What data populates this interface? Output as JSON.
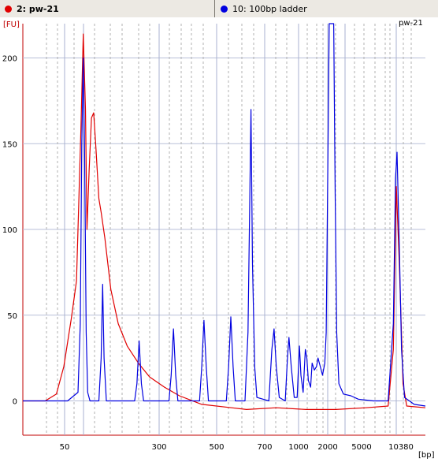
{
  "tabs": [
    {
      "label": "2: pw-21",
      "color": "#e00000"
    },
    {
      "label": "10: 100bp ladder",
      "color": "#0000e0"
    }
  ],
  "chart_data": {
    "type": "line",
    "title": "pw-21",
    "ylabel": "[FU]",
    "xlabel": "[bp]",
    "ylim": [
      -20,
      220
    ],
    "y_ticks": [
      0,
      50,
      100,
      150,
      200
    ],
    "x_tick_labels": [
      "50",
      "300",
      "500",
      "700",
      "1000",
      "2000",
      "5000",
      "10380"
    ],
    "grid": true,
    "series": [
      {
        "name": "pw-21",
        "color": "#e00000",
        "points": [
          [
            0,
            0
          ],
          [
            30,
            0
          ],
          [
            45,
            4
          ],
          [
            55,
            20
          ],
          [
            65,
            48
          ],
          [
            72,
            70
          ],
          [
            78,
            160
          ],
          [
            81,
            214
          ],
          [
            84,
            170
          ],
          [
            86,
            100
          ],
          [
            89,
            135
          ],
          [
            92,
            165
          ],
          [
            95,
            168
          ],
          [
            98,
            148
          ],
          [
            102,
            118
          ],
          [
            105,
            110
          ],
          [
            110,
            95
          ],
          [
            118,
            65
          ],
          [
            128,
            45
          ],
          [
            140,
            32
          ],
          [
            155,
            22
          ],
          [
            170,
            14
          ],
          [
            190,
            8
          ],
          [
            210,
            3
          ],
          [
            240,
            -2
          ],
          [
            280,
            -4
          ],
          [
            300,
            -5
          ],
          [
            340,
            -4
          ],
          [
            380,
            -5
          ],
          [
            420,
            -5
          ],
          [
            460,
            -4
          ],
          [
            490,
            -3
          ],
          [
            497,
            30
          ],
          [
            501,
            125
          ],
          [
            505,
            80
          ],
          [
            510,
            10
          ],
          [
            515,
            -3
          ],
          [
            540,
            -4
          ]
        ]
      },
      {
        "name": "10: 100bp ladder",
        "color": "#0000e0",
        "points": [
          [
            0,
            0
          ],
          [
            60,
            0
          ],
          [
            74,
            5
          ],
          [
            77,
            45
          ],
          [
            79,
            150
          ],
          [
            81,
            200
          ],
          [
            83,
            140
          ],
          [
            85,
            40
          ],
          [
            87,
            5
          ],
          [
            90,
            0
          ],
          [
            102,
            0
          ],
          [
            105,
            25
          ],
          [
            107,
            68
          ],
          [
            109,
            25
          ],
          [
            112,
            0
          ],
          [
            150,
            0
          ],
          [
            153,
            10
          ],
          [
            156,
            35
          ],
          [
            159,
            10
          ],
          [
            162,
            0
          ],
          [
            196,
            0
          ],
          [
            199,
            15
          ],
          [
            202,
            42
          ],
          [
            205,
            15
          ],
          [
            208,
            0
          ],
          [
            237,
            0
          ],
          [
            240,
            20
          ],
          [
            243,
            47
          ],
          [
            246,
            20
          ],
          [
            249,
            0
          ],
          [
            273,
            0
          ],
          [
            276,
            20
          ],
          [
            279,
            49
          ],
          [
            282,
            20
          ],
          [
            285,
            0
          ],
          [
            298,
            0
          ],
          [
            302,
            40
          ],
          [
            306,
            170
          ],
          [
            308,
            80
          ],
          [
            311,
            20
          ],
          [
            314,
            2
          ],
          [
            330,
            0
          ],
          [
            334,
            30
          ],
          [
            337,
            42
          ],
          [
            340,
            20
          ],
          [
            344,
            2
          ],
          [
            352,
            0
          ],
          [
            355,
            25
          ],
          [
            357,
            37
          ],
          [
            360,
            20
          ],
          [
            364,
            2
          ],
          [
            368,
            2
          ],
          [
            371,
            32
          ],
          [
            373,
            15
          ],
          [
            376,
            5
          ],
          [
            379,
            30
          ],
          [
            381,
            25
          ],
          [
            383,
            12
          ],
          [
            386,
            8
          ],
          [
            388,
            22
          ],
          [
            391,
            18
          ],
          [
            394,
            20
          ],
          [
            396,
            25
          ],
          [
            399,
            20
          ],
          [
            402,
            15
          ],
          [
            405,
            22
          ],
          [
            407,
            40
          ],
          [
            409,
            130
          ],
          [
            411,
            220
          ],
          [
            414,
            230
          ],
          [
            417,
            220
          ],
          [
            419,
            120
          ],
          [
            421,
            40
          ],
          [
            424,
            10
          ],
          [
            430,
            4
          ],
          [
            440,
            3
          ],
          [
            450,
            1
          ],
          [
            470,
            0
          ],
          [
            490,
            0
          ],
          [
            497,
            45
          ],
          [
            500,
            130
          ],
          [
            502,
            145
          ],
          [
            505,
            90
          ],
          [
            508,
            30
          ],
          [
            512,
            2
          ],
          [
            525,
            -2
          ],
          [
            540,
            -3
          ]
        ]
      }
    ]
  }
}
